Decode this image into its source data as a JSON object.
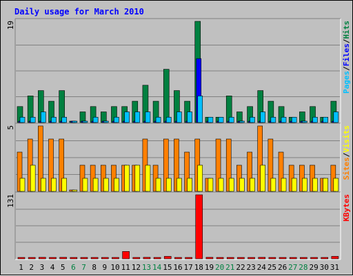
{
  "chart_data": {
    "type": "bar",
    "title": "Daily usage for March 2010",
    "categories": [
      "1",
      "2",
      "3",
      "4",
      "5",
      "6",
      "7",
      "8",
      "9",
      "10",
      "11",
      "12",
      "13",
      "14",
      "15",
      "16",
      "17",
      "18",
      "19",
      "20",
      "21",
      "22",
      "23",
      "24",
      "25",
      "26",
      "27",
      "28",
      "29",
      "30",
      "31"
    ],
    "weekend_days": [
      "6",
      "7",
      "13",
      "14",
      "20",
      "21",
      "27",
      "28"
    ],
    "panels": [
      {
        "id": "hits-files-pages",
        "ymax": 19,
        "ymax_label": "19",
        "legend": [
          {
            "text": "Pages",
            "color": "#00c0ff"
          },
          {
            "text": "/",
            "color": "#000000"
          },
          {
            "text": "Files",
            "color": "#0000ff"
          },
          {
            "text": "/",
            "color": "#000000"
          },
          {
            "text": "Hits",
            "color": "#008040"
          }
        ],
        "series": [
          {
            "name": "Hits",
            "color": "#008040",
            "values": [
              3,
              5,
              6,
              4,
              6,
              0,
              2,
              3,
              2,
              3,
              3,
              4,
              7,
              4,
              10,
              6,
              4,
              19,
              1,
              1,
              5,
              2,
              3,
              6,
              4,
              3,
              1,
              2,
              3,
              1,
              4
            ]
          },
          {
            "name": "Files",
            "color": "#0000ff",
            "values": [
              0,
              0,
              0,
              0,
              0,
              0,
              0,
              0,
              0,
              0,
              0,
              0,
              0,
              0,
              0,
              0,
              0,
              12,
              0,
              0,
              0,
              0,
              0,
              0,
              0,
              0,
              0,
              0,
              0,
              0,
              0
            ]
          },
          {
            "name": "Pages",
            "color": "#00c0ff",
            "values": [
              1,
              1,
              2,
              1,
              1,
              0,
              0,
              1,
              0,
              1,
              2,
              2,
              2,
              1,
              1,
              2,
              2,
              5,
              1,
              1,
              1,
              0,
              1,
              2,
              1,
              1,
              1,
              0,
              1,
              1,
              2
            ]
          }
        ]
      },
      {
        "id": "visits-sites",
        "ymax": 5,
        "ymax_label": "5",
        "legend": [
          {
            "text": "Sites",
            "color": "#ff8000"
          },
          {
            "text": "/",
            "color": "#000000"
          },
          {
            "text": "Visits",
            "color": "#ffff00"
          }
        ],
        "series": [
          {
            "name": "Sites",
            "color": "#ff8000",
            "values": [
              3,
              4,
              5,
              4,
              4,
              0,
              2,
              2,
              2,
              2,
              2,
              2,
              4,
              2,
              4,
              4,
              3,
              4,
              1,
              4,
              4,
              2,
              3,
              5,
              4,
              3,
              2,
              2,
              2,
              1,
              2
            ]
          },
          {
            "name": "Visits",
            "color": "#ffff00",
            "values": [
              1,
              2,
              1,
              1,
              1,
              0,
              1,
              1,
              1,
              1,
              2,
              2,
              2,
              1,
              1,
              1,
              1,
              2,
              1,
              1,
              1,
              1,
              1,
              2,
              1,
              1,
              1,
              1,
              1,
              1,
              1
            ]
          }
        ]
      },
      {
        "id": "kbytes",
        "ymax": 131,
        "ymax_label": "131",
        "legend": [
          {
            "text": "KBytes",
            "color": "#ff0000"
          }
        ],
        "series": [
          {
            "name": "KBytes",
            "color": "#ff0000",
            "values": [
              1,
              1,
              3,
              1,
              3,
              0,
              1,
              1,
              1,
              1,
              15,
              2,
              3,
              2,
              5,
              2,
              2,
              131,
              3,
              1,
              1,
              1,
              1,
              3,
              1,
              1,
              1,
              1,
              1,
              1,
              5
            ]
          }
        ]
      }
    ]
  }
}
